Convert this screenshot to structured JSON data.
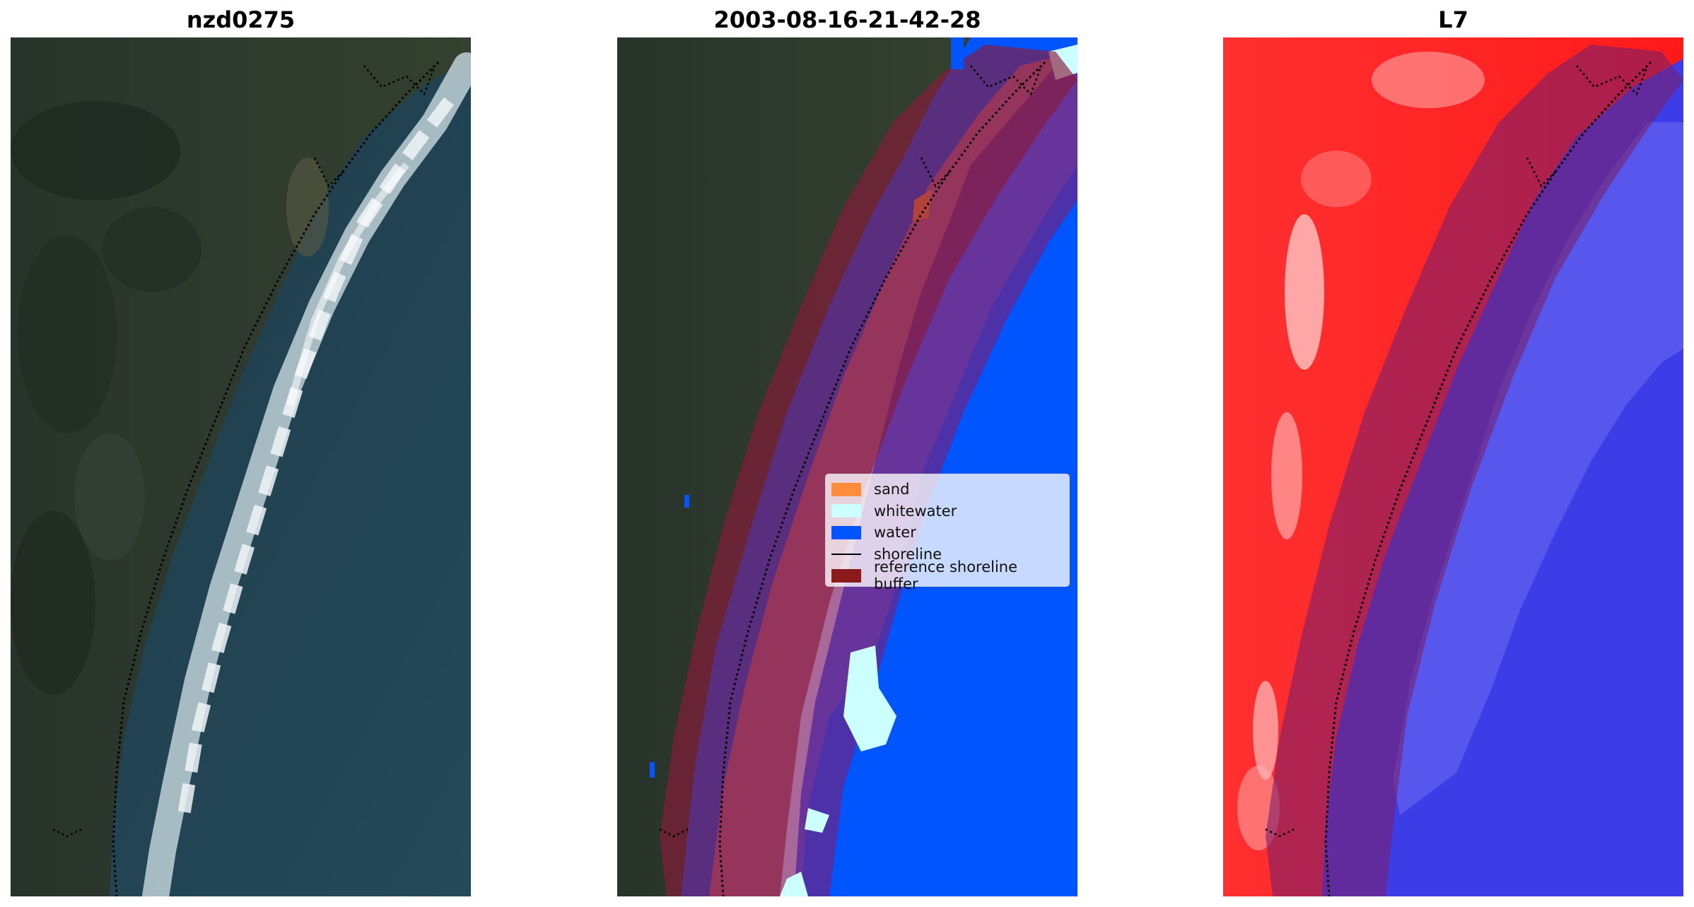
{
  "panels": {
    "left": {
      "title": "nzd0275"
    },
    "middle": {
      "title": "2003-08-16-21-42-28"
    },
    "right": {
      "title": "L7"
    }
  },
  "legend": {
    "items": [
      {
        "label": "sand",
        "color": "#ff8c3a",
        "kind": "patch"
      },
      {
        "label": "whitewater",
        "color": "#ccffff",
        "kind": "patch"
      },
      {
        "label": "water",
        "color": "#0055ff",
        "kind": "patch"
      },
      {
        "label": "shoreline",
        "color": "#000000",
        "kind": "line"
      },
      {
        "label": "reference shoreline buffer",
        "color": "#8b1a1a",
        "kind": "patch"
      }
    ]
  },
  "colors": {
    "buffer": "#7a1030",
    "water_class": "#0055ff",
    "whitewater_class": "#ccffff",
    "sand_class": "#ff8c3a",
    "land_class": "#b07aa8",
    "index_land": "#ff2020",
    "index_water": "#3a3aee"
  }
}
